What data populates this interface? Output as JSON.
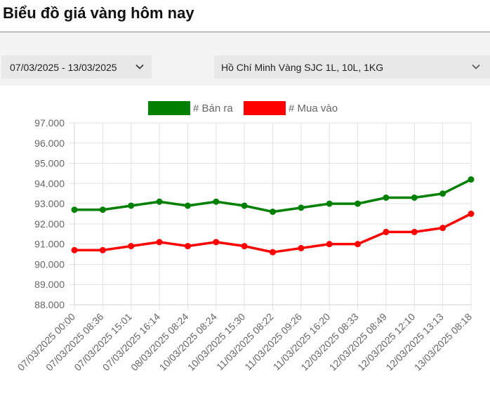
{
  "page": {
    "title": "Biểu đồ giá vàng hôm nay"
  },
  "filters": {
    "date_range": "07/03/2025 - 13/03/2025",
    "product": "Hồ Chí Minh Vàng SJC 1L, 10L, 1KG"
  },
  "icons": {
    "dropdown": "chevron-down-icon"
  },
  "chart_data": {
    "type": "line",
    "categories": [
      "07/03/2025 00:00",
      "07/03/2025 08:36",
      "07/03/2025 15:01",
      "07/03/2025 16:14",
      "08/03/2025 08:24",
      "10/03/2025 08:24",
      "10/03/2025 15:30",
      "11/03/2025 08:22",
      "11/03/2025 09:26",
      "11/03/2025 16:20",
      "12/03/2025 08:33",
      "12/03/2025 08:49",
      "12/03/2025 12:10",
      "12/03/2025 13:13",
      "13/03/2025 08:18"
    ],
    "series": [
      {
        "name": "# Bán ra",
        "color": "#008000",
        "values": [
          92.7,
          92.7,
          92.9,
          93.1,
          92.9,
          93.1,
          92.9,
          92.6,
          92.8,
          93.0,
          93.0,
          93.3,
          93.3,
          93.5,
          94.2
        ]
      },
      {
        "name": "# Mua vào",
        "color": "#ff0000",
        "values": [
          90.7,
          90.7,
          90.9,
          91.1,
          90.9,
          91.1,
          90.9,
          90.6,
          90.8,
          91.0,
          91.0,
          91.6,
          91.6,
          91.8,
          92.5
        ]
      }
    ],
    "y_ticks": [
      "97.000",
      "96.000",
      "95.000",
      "94.000",
      "93.000",
      "92.000",
      "91.000",
      "90.000",
      "89.000",
      "88.000"
    ],
    "ylim": [
      88,
      97
    ],
    "grid": true,
    "legend_position": "top"
  }
}
